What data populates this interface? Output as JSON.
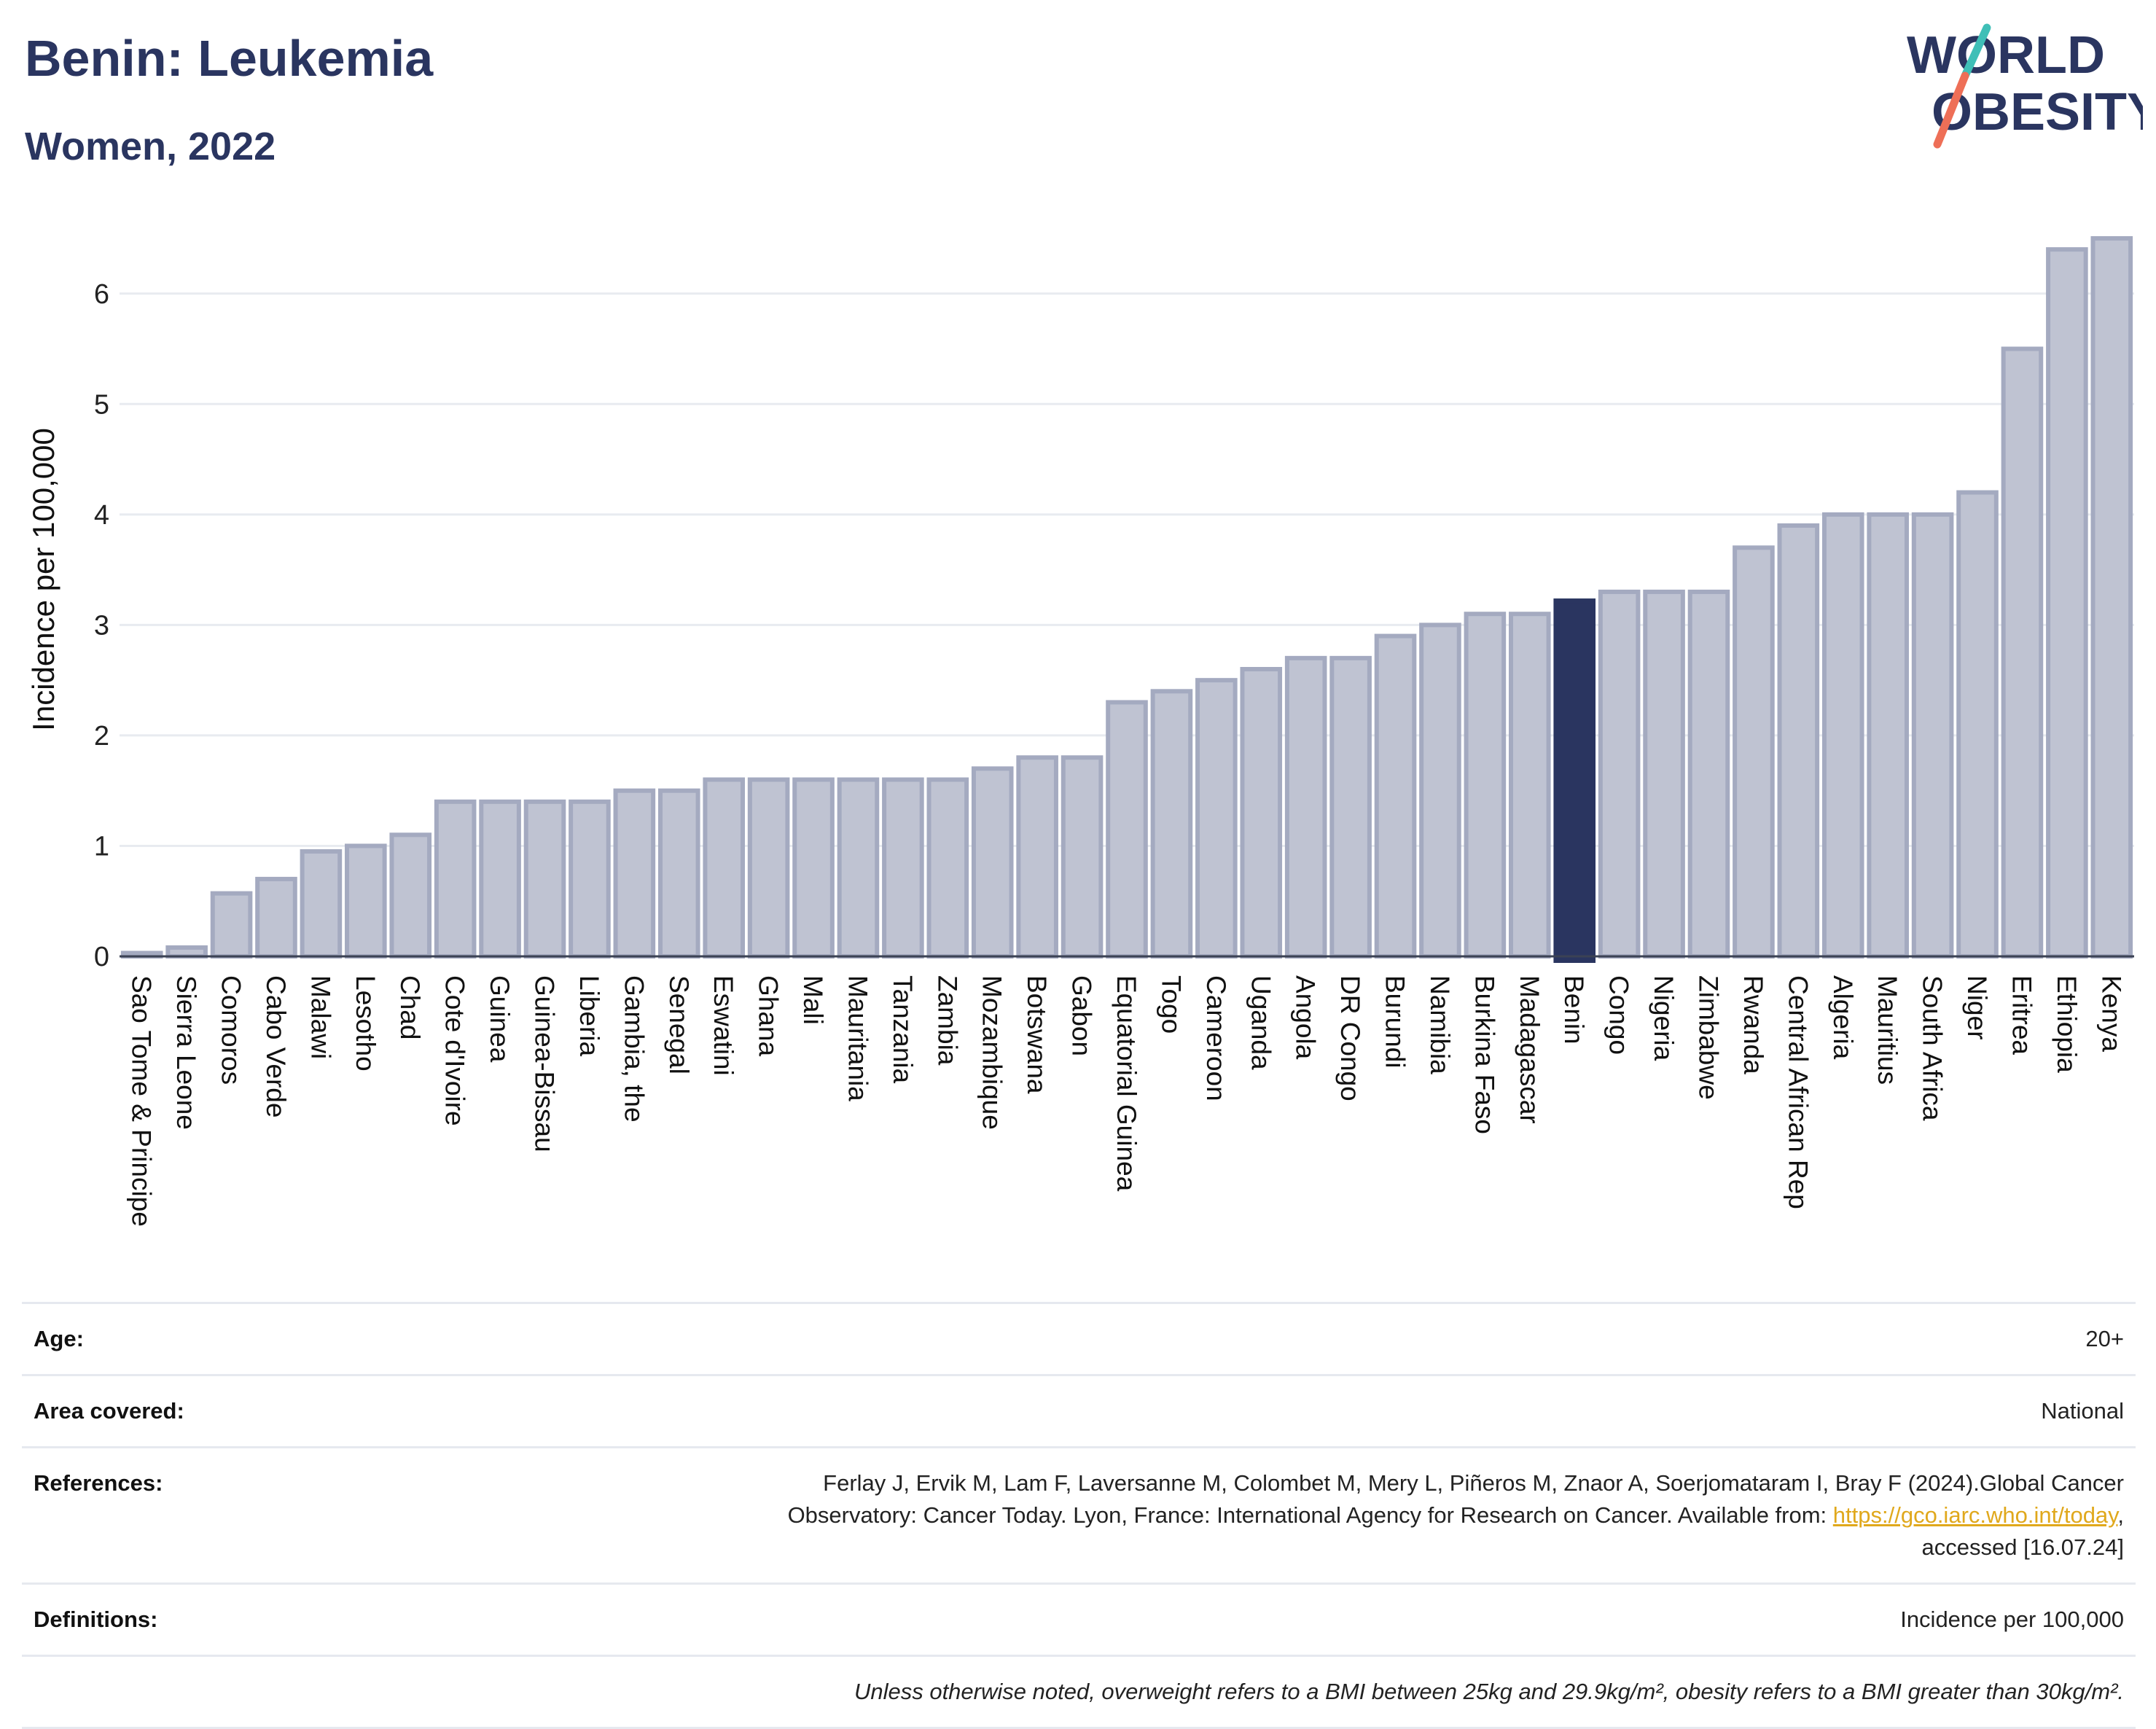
{
  "header": {
    "title": "Benin: Leukemia",
    "subtitle": "Women, 2022",
    "logo_line1": "WORLD",
    "logo_line2": "OBESITY"
  },
  "colors": {
    "bar": "#bfc3d2",
    "bar_stroke": "#a4aac0",
    "highlight": "#2a3560",
    "title": "#2a3560",
    "logo_slash_top": "#3fbfb7",
    "logo_slash_bottom": "#ee6f57",
    "link": "#e0a81c"
  },
  "chart_data": {
    "type": "bar",
    "ylabel": "Incidence per 100,000",
    "xlabel": "",
    "ylim": [
      0,
      6.5
    ],
    "yticks": [
      0,
      1,
      2,
      3,
      4,
      5,
      6
    ],
    "grid": true,
    "highlight": "Benin",
    "categories": [
      "Sao Tome & Principe",
      "Sierra Leone",
      "Comoros",
      "Cabo Verde",
      "Malawi",
      "Lesotho",
      "Chad",
      "Cote d'Ivoire",
      "Guinea",
      "Guinea-Bissau",
      "Liberia",
      "Gambia, the",
      "Senegal",
      "Eswatini",
      "Ghana",
      "Mali",
      "Mauritania",
      "Tanzania",
      "Zambia",
      "Mozambique",
      "Botswana",
      "Gabon",
      "Equatorial Guinea",
      "Togo",
      "Cameroon",
      "Uganda",
      "Angola",
      "DR Congo",
      "Burundi",
      "Namibia",
      "Burkina Faso",
      "Madagascar",
      "Benin",
      "Congo",
      "Nigeria",
      "Zimbabwe",
      "Rwanda",
      "Central African Rep",
      "Algeria",
      "Mauritius",
      "South Africa",
      "Niger",
      "Eritrea",
      "Ethiopia",
      "Kenya"
    ],
    "values": [
      0.03,
      0.08,
      0.57,
      0.7,
      0.95,
      1.0,
      1.1,
      1.4,
      1.4,
      1.4,
      1.4,
      1.5,
      1.5,
      1.6,
      1.6,
      1.6,
      1.6,
      1.6,
      1.6,
      1.7,
      1.8,
      1.8,
      2.3,
      2.4,
      2.5,
      2.6,
      2.7,
      2.7,
      2.9,
      3.0,
      3.1,
      3.1,
      3.22,
      3.3,
      3.3,
      3.3,
      3.7,
      3.9,
      4.0,
      4.0,
      4.0,
      4.2,
      5.5,
      6.4,
      6.5
    ]
  },
  "meta": {
    "age_label": "Age:",
    "age_value": "20+",
    "area_label": "Area covered:",
    "area_value": "National",
    "references_label": "References:",
    "references_line1": "Ferlay J, Ervik M, Lam F, Laversanne M, Colombet M, Mery L, Piñeros M, Znaor A, Soerjomataram I, Bray F (2024).Global Cancer",
    "references_line2_pre": "Observatory: Cancer Today. Lyon, France: International Agency for Research on Cancer. Available from: ",
    "references_link": "https://gco.iarc.who.int/today",
    "references_line2_post": ",",
    "references_line3": "accessed [16.07.24]",
    "definitions_label": "Definitions:",
    "definitions_value": "Incidence per 100,000",
    "note": "Unless otherwise noted, overweight refers to a BMI between 25kg and 29.9kg/m², obesity refers to a BMI greater than 30kg/m²."
  }
}
